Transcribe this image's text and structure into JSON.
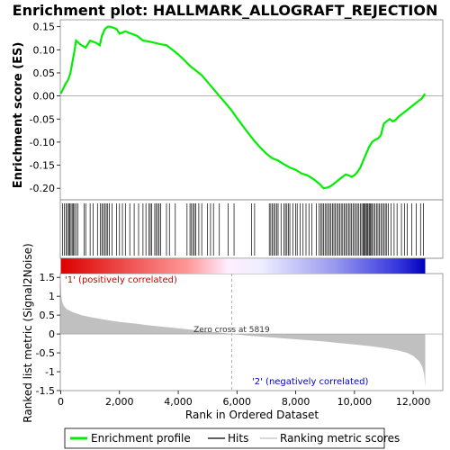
{
  "chart_data": [
    {
      "type": "line",
      "panel": "enrichment profile",
      "title": "Enrichment plot: HALLMARK_ALLOGRAFT_REJECTION",
      "ylabel": "Enrichment score (ES)",
      "xlim": [
        0,
        12700
      ],
      "ylim": [
        -0.225,
        0.165
      ],
      "yticks": [
        "0.15",
        "0.10",
        "0.05",
        "0.00",
        "-0.05",
        "-0.10",
        "-0.15",
        "-0.20"
      ],
      "grid": false,
      "zero_line": true,
      "line_color": "#00ee00",
      "series": [
        {
          "name": "Enrichment profile",
          "x": [
            0,
            80,
            150,
            250,
            330,
            400,
            460,
            520,
            700,
            850,
            1000,
            1200,
            1330,
            1400,
            1500,
            1600,
            1700,
            1900,
            2000,
            2200,
            2400,
            2600,
            2800,
            3000,
            3200,
            3400,
            3600,
            3800,
            4000,
            4200,
            4400,
            4600,
            4800,
            5000,
            5200,
            5400,
            5600,
            5800,
            6000,
            6200,
            6400,
            6600,
            6800,
            7000,
            7200,
            7400,
            7600,
            7800,
            8000,
            8200,
            8400,
            8600,
            8800,
            8950,
            9100,
            9200,
            9300,
            9400,
            9500,
            9600,
            9700,
            9800,
            9900,
            10000,
            10100,
            10200,
            10300,
            10400,
            10500,
            10600,
            10700,
            10800,
            10900,
            11000,
            11100,
            11200,
            11300,
            11400,
            11500,
            11600,
            11700,
            11800,
            11900,
            12000,
            12100,
            12200,
            12300,
            12400
          ],
          "y": [
            0.005,
            0.015,
            0.025,
            0.035,
            0.05,
            0.075,
            0.095,
            0.12,
            0.11,
            0.105,
            0.12,
            0.115,
            0.11,
            0.13,
            0.145,
            0.15,
            0.15,
            0.145,
            0.135,
            0.14,
            0.135,
            0.13,
            0.12,
            0.118,
            0.115,
            0.112,
            0.11,
            0.1,
            0.09,
            0.078,
            0.065,
            0.055,
            0.045,
            0.03,
            0.015,
            0.0,
            -0.015,
            -0.03,
            -0.048,
            -0.065,
            -0.082,
            -0.098,
            -0.112,
            -0.125,
            -0.135,
            -0.14,
            -0.148,
            -0.155,
            -0.16,
            -0.168,
            -0.172,
            -0.18,
            -0.19,
            -0.2,
            -0.198,
            -0.195,
            -0.19,
            -0.185,
            -0.18,
            -0.175,
            -0.17,
            -0.172,
            -0.175,
            -0.172,
            -0.165,
            -0.155,
            -0.14,
            -0.125,
            -0.11,
            -0.1,
            -0.095,
            -0.092,
            -0.085,
            -0.06,
            -0.055,
            -0.05,
            -0.055,
            -0.052,
            -0.045,
            -0.04,
            -0.035,
            -0.03,
            -0.025,
            -0.02,
            -0.015,
            -0.01,
            -0.005,
            0.005
          ]
        }
      ]
    },
    {
      "type": "scatter",
      "panel": "hits",
      "legend_entry": "Hits",
      "hit_color": "#000000",
      "xlim": [
        0,
        12700
      ],
      "hits": [
        60,
        120,
        180,
        230,
        270,
        310,
        350,
        390,
        430,
        470,
        520,
        580,
        800,
        850,
        1000,
        1100,
        1250,
        1350,
        1400,
        1450,
        1500,
        1550,
        1600,
        1650,
        1750,
        1900,
        2000,
        2100,
        2200,
        2350,
        2500,
        2650,
        2800,
        2900,
        3000,
        3050,
        3100,
        3200,
        3250,
        3300,
        3350,
        3400,
        3600,
        3700,
        3900,
        4300,
        4400,
        4450,
        4500,
        4550,
        4600,
        4700,
        4800,
        5000,
        5100,
        5200,
        5400,
        5700,
        5900,
        6500,
        6600,
        7100,
        7150,
        7200,
        7250,
        7300,
        7350,
        7400,
        7500,
        7600,
        7650,
        7700,
        7750,
        7800,
        7900,
        8000,
        8050,
        8150,
        8250,
        8350,
        8450,
        8550,
        8700,
        8800,
        8850,
        8900,
        8950,
        9000,
        9050,
        9100,
        9150,
        9200,
        9250,
        9300,
        9350,
        9400,
        9450,
        9500,
        9550,
        9600,
        9650,
        9700,
        9750,
        9800,
        9850,
        9900,
        9950,
        10000,
        10050,
        10100,
        10150,
        10200,
        10250,
        10300,
        10330,
        10360,
        10400,
        10430,
        10460,
        10500,
        10530,
        10560,
        10600,
        10650,
        10700,
        10750,
        10800,
        10850,
        10900,
        10950,
        11000,
        11050,
        11100,
        11150,
        11250,
        11350,
        11450,
        11600,
        11700,
        11800,
        11950,
        12100,
        12250,
        12350
      ]
    },
    {
      "type": "area",
      "panel": "ranked list metric",
      "ylabel": "Ranked list metric (Signal2Noise)",
      "xlabel": "Rank in Ordered Dataset",
      "xlim": [
        0,
        12700
      ],
      "ylim": [
        -1.5,
        1.6
      ],
      "xticks": [
        "0",
        "2,000",
        "4,000",
        "6,000",
        "8,000",
        "10,000",
        "12,000"
      ],
      "yticks": [
        "1.5",
        "1",
        "0.5",
        "0",
        "-0.5",
        "-1",
        "-1.5"
      ],
      "fill_color": "#c0c0c0",
      "legend_entry": "Ranking metric scores",
      "x": [
        0,
        20,
        50,
        100,
        200,
        400,
        700,
        1000,
        1500,
        2000,
        2500,
        3000,
        3500,
        4000,
        4500,
        5000,
        5500,
        5819,
        6500,
        7000,
        7500,
        8000,
        8500,
        9000,
        9500,
        10000,
        10500,
        11000,
        11500,
        11800,
        12000,
        12200,
        12300,
        12370,
        12410
      ],
      "y": [
        1.45,
        1.0,
        0.85,
        0.75,
        0.66,
        0.58,
        0.5,
        0.45,
        0.38,
        0.32,
        0.28,
        0.23,
        0.19,
        0.15,
        0.11,
        0.07,
        0.03,
        0.0,
        -0.05,
        -0.08,
        -0.11,
        -0.14,
        -0.17,
        -0.2,
        -0.24,
        -0.28,
        -0.32,
        -0.37,
        -0.44,
        -0.5,
        -0.58,
        -0.72,
        -0.85,
        -1.05,
        -1.4
      ],
      "zero_cross": {
        "rank": 5819,
        "label": "Zero cross at 5819"
      },
      "annotations": [
        {
          "text": "'1' (positively correlated)",
          "color": "#cc0000"
        },
        {
          "text": "'2' (negatively correlated)",
          "color": "#0000cc"
        }
      ]
    }
  ],
  "legend": {
    "items": [
      {
        "label": "Enrichment profile",
        "color": "#00ee00"
      },
      {
        "label": "Hits",
        "color": "#000000"
      },
      {
        "label": "Ranking metric scores",
        "color": "#c0c0c0"
      }
    ]
  },
  "heat_bar": {
    "pos_color": "#ee0000",
    "neg_color": "#0000cc",
    "mid_color": "#ffffff"
  }
}
